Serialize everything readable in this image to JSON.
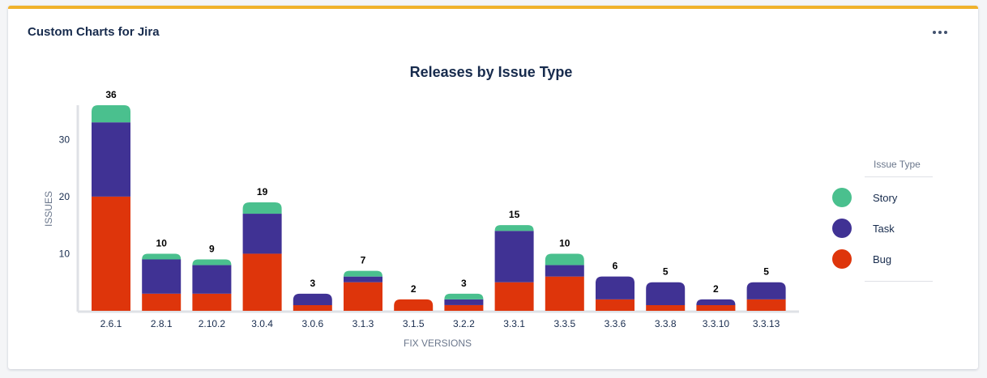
{
  "gadget": {
    "title": "Custom Charts for Jira"
  },
  "legend": {
    "title": "Issue Type",
    "items": [
      {
        "label": "Story",
        "color": "#4ac08e"
      },
      {
        "label": "Task",
        "color": "#403294"
      },
      {
        "label": "Bug",
        "color": "#de350b"
      }
    ]
  },
  "chart_data": {
    "type": "bar",
    "stacked": true,
    "title": "Releases by Issue Type",
    "xlabel": "FIX VERSIONS",
    "ylabel": "ISSUES",
    "ylim": [
      0,
      36
    ],
    "yticks": [
      10,
      20,
      30
    ],
    "grid": false,
    "legend_position": "right",
    "categories": [
      "2.6.1",
      "2.8.1",
      "2.10.2",
      "3.0.4",
      "3.0.6",
      "3.1.3",
      "3.1.5",
      "3.2.2",
      "3.3.1",
      "3.3.5",
      "3.3.6",
      "3.3.8",
      "3.3.10",
      "3.3.13"
    ],
    "totals": [
      36,
      10,
      9,
      19,
      3,
      7,
      2,
      3,
      15,
      10,
      6,
      5,
      2,
      5
    ],
    "series": [
      {
        "name": "Bug",
        "color": "#de350b",
        "values": [
          20,
          3,
          3,
          10,
          1,
          5,
          2,
          1,
          5,
          6,
          2,
          1,
          1,
          2
        ]
      },
      {
        "name": "Task",
        "color": "#403294",
        "values": [
          13,
          6,
          5,
          7,
          2,
          1,
          0,
          1,
          9,
          2,
          4,
          4,
          1,
          3
        ]
      },
      {
        "name": "Story",
        "color": "#4ac08e",
        "values": [
          3,
          1,
          1,
          2,
          0,
          1,
          0,
          1,
          1,
          2,
          0,
          0,
          0,
          0
        ]
      }
    ]
  }
}
